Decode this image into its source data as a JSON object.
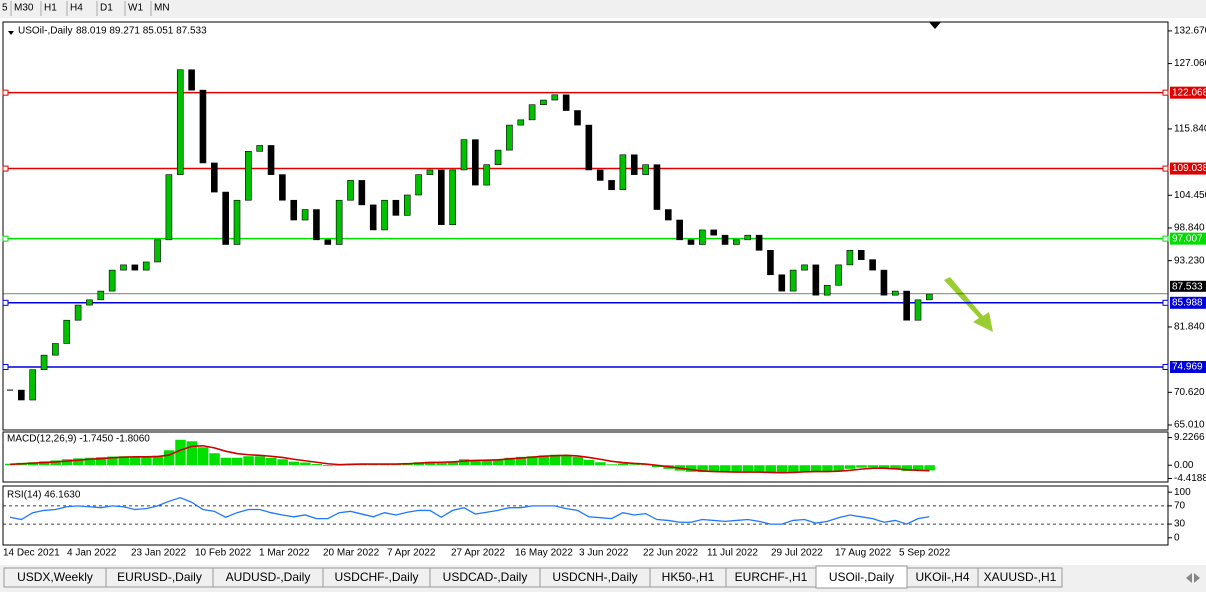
{
  "toolbar": [
    "5",
    "M30",
    "H1",
    "H4",
    "D1",
    "W1",
    "MN"
  ],
  "chart_data": {
    "type": "candlestick",
    "title": "USOil-,Daily",
    "ohlc_text": "88.019 89.271 85.051 87.533",
    "closes": [
      71,
      69.3,
      74.5,
      77,
      79,
      83,
      85.6,
      86.5,
      88,
      91.6,
      92.5,
      91.6,
      93,
      96.8,
      108,
      126,
      122.5,
      110,
      105,
      96,
      103.6,
      112,
      113,
      108,
      103.6,
      100.2,
      102,
      96.8,
      96,
      103.6,
      107,
      102.8,
      98.5,
      103.6,
      101,
      104.5,
      108,
      108.8,
      99.4,
      108.8,
      114,
      106.2,
      109.7,
      112.2,
      116.5,
      117.4,
      120,
      120.8,
      121.7,
      119,
      116.5,
      108.8,
      107,
      105.4,
      111.4,
      108,
      109.7,
      102,
      100.2,
      96.8,
      96,
      98.5,
      97.6,
      96,
      96.8,
      97.6,
      95,
      90.8,
      88,
      91.6,
      92.5,
      87.3,
      89,
      92.5,
      95,
      93.4,
      91.6,
      87.3,
      88,
      83,
      86.5,
      87.5
    ],
    "up_color": "#00c000",
    "down_color": "#000000",
    "ylim": [
      64.15,
      134.2
    ],
    "yticks": [
      {
        "value": 132.67,
        "label": "132.670"
      },
      {
        "value": 127.06,
        "label": "127.060"
      },
      {
        "value": 115.84,
        "label": "115.840"
      },
      {
        "value": 104.45,
        "label": "104.450"
      },
      {
        "value": 98.84,
        "label": "98.840"
      },
      {
        "value": 93.23,
        "label": "93.230"
      },
      {
        "value": 81.84,
        "label": "81.840"
      },
      {
        "value": 70.62,
        "label": "70.620"
      },
      {
        "value": 65.01,
        "label": "65.010"
      }
    ],
    "levels": [
      {
        "value": 122.068,
        "label": "122.068",
        "color": "#e00000"
      },
      {
        "value": 109.038,
        "label": "109.038",
        "color": "#e00000"
      },
      {
        "value": 97.007,
        "label": "97.007",
        "color": "#00dd00"
      },
      {
        "value": 85.988,
        "label": "85.988",
        "color": "#0000dd"
      },
      {
        "value": 74.969,
        "label": "74.969",
        "color": "#0000dd"
      }
    ],
    "last_price": {
      "value": 87.533,
      "label": "87.533"
    },
    "x_labels": [
      "14 Dec 2021",
      "4 Jan 2022",
      "23 Jan 2022",
      "10 Feb 2022",
      "1 Mar 2022",
      "20 Mar 2022",
      "7 Apr 2022",
      "27 Apr 2022",
      "16 May 2022",
      "3 Jun 2022",
      "22 Jun 2022",
      "11 Jul 2022",
      "29 Jul 2022",
      "17 Aug 2022",
      "5 Sep 2022"
    ],
    "macd": {
      "title": "MACD(12,26,9) -1.7450 -1.8060",
      "histogram": [
        0.5,
        0.8,
        1,
        1.3,
        1.6,
        2,
        2.3,
        2.5,
        2.7,
        2.9,
        3,
        2.9,
        2.9,
        3.2,
        5,
        8.5,
        8,
        6,
        4,
        2.5,
        2.5,
        3,
        3,
        2.5,
        2,
        1.2,
        0.9,
        0.4,
        -0.3,
        0,
        0.5,
        0.5,
        0.3,
        0.5,
        0.4,
        0.6,
        1,
        1.2,
        0.9,
        1.3,
        2,
        1.8,
        1.8,
        2,
        2.5,
        2.8,
        3,
        3.3,
        3.5,
        3.3,
        2.8,
        1.8,
        1,
        0.3,
        0.6,
        0.3,
        0.2,
        -0.6,
        -1.2,
        -1.8,
        -2.2,
        -2.3,
        -2.2,
        -2.4,
        -2.3,
        -2.2,
        -2.3,
        -2.5,
        -2.6,
        -2.3,
        -2,
        -2.2,
        -2.2,
        -1.8,
        -1.2,
        -0.8,
        -0.7,
        -1.2,
        -1.4,
        -1.9,
        -1.8,
        -1.745
      ],
      "signal": [
        0.3,
        0.5,
        0.7,
        0.9,
        1.1,
        1.4,
        1.7,
        2,
        2.2,
        2.5,
        2.7,
        2.8,
        2.8,
        2.9,
        3.4,
        5,
        6.3,
        6.5,
        5.8,
        4.7,
        3.9,
        3.5,
        3.3,
        3,
        2.6,
        2,
        1.5,
        1,
        0.5,
        0.2,
        0.3,
        0.4,
        0.4,
        0.4,
        0.4,
        0.5,
        0.7,
        0.9,
        1,
        1.1,
        1.4,
        1.6,
        1.7,
        1.8,
        2.1,
        2.4,
        2.7,
        3,
        3.2,
        3.3,
        3.1,
        2.6,
        2,
        1.3,
        0.9,
        0.6,
        0.4,
        0,
        -0.5,
        -1,
        -1.5,
        -1.9,
        -2.1,
        -2.2,
        -2.3,
        -2.3,
        -2.3,
        -2.4,
        -2.5,
        -2.4,
        -2.2,
        -2.1,
        -2.1,
        -2,
        -1.7,
        -1.3,
        -1,
        -1,
        -1.2,
        -1.5,
        -1.7,
        -1.806
      ],
      "hist_color": "#00e000",
      "signal_color": "#d00000",
      "ylim": [
        -5.6,
        11.1
      ],
      "yticks": [
        {
          "value": 9.2266,
          "label": "9.2266"
        },
        {
          "value": 0,
          "label": "0.00"
        },
        {
          "value": -4.4188,
          "label": "-4.4188"
        }
      ]
    },
    "rsi": {
      "title": "RSI(14) 46.1630",
      "values": [
        45,
        40,
        55,
        60,
        62,
        68,
        70,
        68,
        66,
        70,
        68,
        62,
        64,
        70,
        80,
        88,
        78,
        62,
        58,
        45,
        55,
        62,
        62,
        55,
        50,
        46,
        50,
        42,
        42,
        55,
        58,
        52,
        46,
        55,
        50,
        56,
        60,
        60,
        45,
        60,
        66,
        52,
        56,
        60,
        66,
        66,
        70,
        70,
        70,
        64,
        60,
        46,
        44,
        42,
        55,
        50,
        53,
        40,
        38,
        34,
        34,
        40,
        38,
        36,
        38,
        40,
        36,
        30,
        30,
        38,
        40,
        32,
        36,
        44,
        50,
        46,
        42,
        34,
        38,
        30,
        42,
        46.163
      ],
      "color": "#1e78ff",
      "ylim": [
        -15.9,
        113.6
      ],
      "yticks": [
        0,
        30,
        70,
        100
      ],
      "dashed_levels": [
        30,
        70
      ]
    }
  },
  "tabs": [
    "USDX,Weekly",
    "EURUSD-,Daily",
    "AUDUSD-,Daily",
    "USDCHF-,Daily",
    "USDCAD-,Daily",
    "USDCNH-,Daily",
    "HK50-,H1",
    "EURCHF-,H1",
    "USOil-,Daily",
    "UKOil-,H4",
    "XAUUSD-,H1"
  ],
  "active_tab": 8
}
